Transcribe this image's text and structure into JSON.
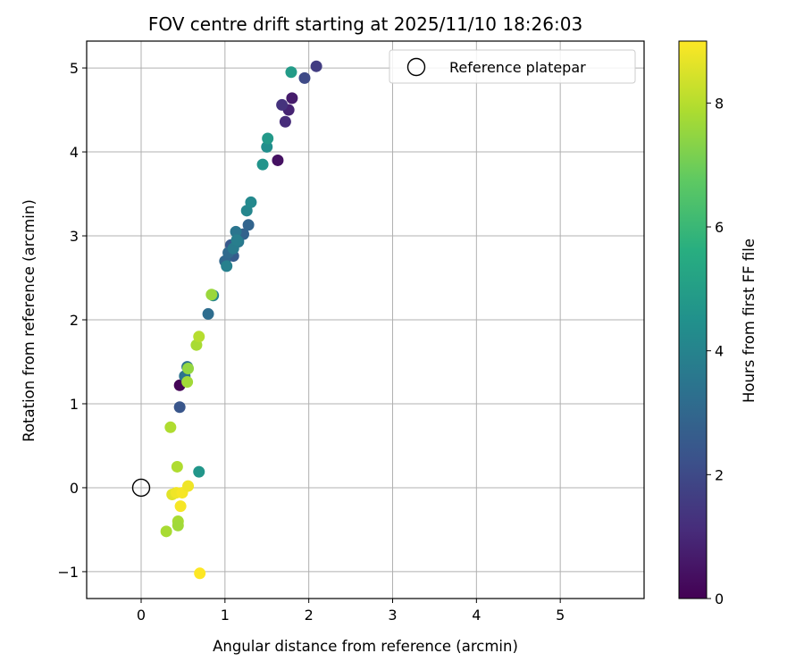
{
  "chart_data": {
    "type": "scatter",
    "title": "FOV centre drift starting at 2025/11/10 18:26:03",
    "xlabel": "Angular distance from reference (arcmin)",
    "ylabel": "Rotation from reference (arcmin)",
    "xlim": [
      -0.65,
      6.0
    ],
    "ylim": [
      -1.32,
      5.32
    ],
    "x_ticks": [
      0,
      1,
      2,
      3,
      4,
      5
    ],
    "x_tick_labels": [
      "0",
      "1",
      "2",
      "3",
      "4",
      "5"
    ],
    "y_ticks": [
      -1,
      0,
      1,
      2,
      3,
      4,
      5
    ],
    "y_tick_labels": [
      "−1",
      "0",
      "1",
      "2",
      "3",
      "4",
      "5"
    ],
    "grid": true,
    "legend": {
      "placement": "top-right",
      "entries": [
        {
          "label": "Reference platepar",
          "marker": "open-circle",
          "color": "#000000"
        }
      ]
    },
    "reference_point": {
      "x": 0,
      "y": 0
    },
    "colorbar": {
      "label": "Hours from first FF file",
      "colormap": "viridis",
      "range": [
        0,
        9
      ],
      "ticks": [
        0,
        2,
        4,
        6,
        8
      ],
      "tick_labels": [
        "0",
        "2",
        "4",
        "6",
        "8"
      ]
    },
    "series": [
      {
        "points": [
          {
            "x": 0.46,
            "y": 1.22,
            "c": 0.1
          },
          {
            "x": 1.63,
            "y": 3.9,
            "c": 0.4
          },
          {
            "x": 1.8,
            "y": 4.64,
            "c": 0.7
          },
          {
            "x": 1.76,
            "y": 4.5,
            "c": 0.9
          },
          {
            "x": 1.72,
            "y": 4.36,
            "c": 1.1
          },
          {
            "x": 1.68,
            "y": 4.56,
            "c": 1.3
          },
          {
            "x": 2.09,
            "y": 5.02,
            "c": 1.6
          },
          {
            "x": 1.95,
            "y": 4.88,
            "c": 2.0
          },
          {
            "x": 0.46,
            "y": 0.96,
            "c": 2.4
          },
          {
            "x": 1.07,
            "y": 2.89,
            "c": 2.5
          },
          {
            "x": 1.1,
            "y": 2.76,
            "c": 2.6
          },
          {
            "x": 1.22,
            "y": 3.02,
            "c": 2.8
          },
          {
            "x": 1.28,
            "y": 3.13,
            "c": 2.9
          },
          {
            "x": 1.0,
            "y": 2.7,
            "c": 3.0
          },
          {
            "x": 1.04,
            "y": 2.8,
            "c": 3.1
          },
          {
            "x": 0.8,
            "y": 2.07,
            "c": 3.2
          },
          {
            "x": 0.55,
            "y": 1.44,
            "c": 3.3
          },
          {
            "x": 0.52,
            "y": 1.33,
            "c": 3.4
          },
          {
            "x": 1.13,
            "y": 3.05,
            "c": 3.5
          },
          {
            "x": 1.16,
            "y": 2.93,
            "c": 3.6
          },
          {
            "x": 1.1,
            "y": 2.85,
            "c": 3.7
          },
          {
            "x": 1.14,
            "y": 2.95,
            "c": 3.8
          },
          {
            "x": 1.02,
            "y": 2.64,
            "c": 3.9
          },
          {
            "x": 0.86,
            "y": 2.29,
            "c": 4.0
          },
          {
            "x": 1.26,
            "y": 3.3,
            "c": 4.1
          },
          {
            "x": 1.31,
            "y": 3.4,
            "c": 4.2
          },
          {
            "x": 1.5,
            "y": 4.06,
            "c": 4.4
          },
          {
            "x": 1.45,
            "y": 3.85,
            "c": 4.6
          },
          {
            "x": 1.51,
            "y": 4.16,
            "c": 4.8
          },
          {
            "x": 1.79,
            "y": 4.95,
            "c": 4.9
          },
          {
            "x": 0.69,
            "y": 0.19,
            "c": 4.7
          },
          {
            "x": 0.84,
            "y": 2.3,
            "c": 7.6
          },
          {
            "x": 0.56,
            "y": 1.42,
            "c": 7.5
          },
          {
            "x": 0.55,
            "y": 1.26,
            "c": 7.7
          },
          {
            "x": 0.66,
            "y": 1.7,
            "c": 7.8
          },
          {
            "x": 0.69,
            "y": 1.8,
            "c": 8.0
          },
          {
            "x": 0.35,
            "y": 0.72,
            "c": 7.9
          },
          {
            "x": 0.43,
            "y": 0.25,
            "c": 7.9
          },
          {
            "x": 0.3,
            "y": -0.52,
            "c": 7.8
          },
          {
            "x": 0.44,
            "y": -0.4,
            "c": 7.8
          },
          {
            "x": 0.44,
            "y": -0.45,
            "c": 7.7
          },
          {
            "x": 0.37,
            "y": -0.08,
            "c": 8.6
          },
          {
            "x": 0.42,
            "y": -0.06,
            "c": 8.8
          },
          {
            "x": 0.49,
            "y": -0.06,
            "c": 8.9
          },
          {
            "x": 0.56,
            "y": 0.02,
            "c": 8.8
          },
          {
            "x": 0.47,
            "y": -0.22,
            "c": 8.9
          },
          {
            "x": 0.7,
            "y": -1.02,
            "c": 9.0
          }
        ]
      }
    ]
  }
}
